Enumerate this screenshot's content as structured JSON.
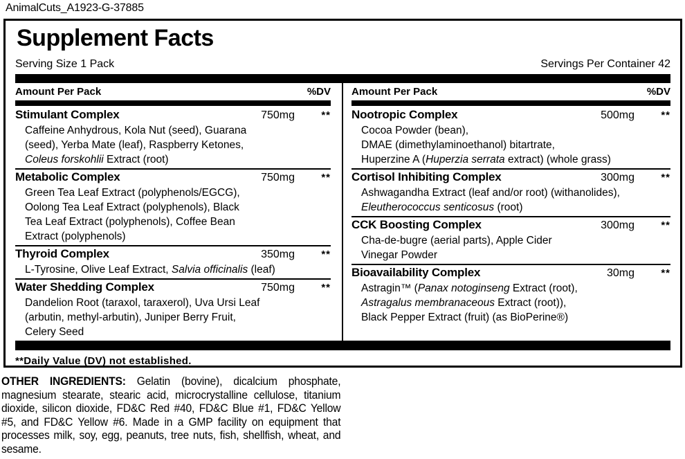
{
  "page": {
    "filename": "AnimalCuts_A1923-G-37885"
  },
  "panel": {
    "title": "Supplement Facts",
    "serving_size": "Serving Size 1 Pack",
    "servings_per_container": "Servings Per Container 42",
    "column_header": {
      "amount_label": "Amount Per Pack",
      "dv_label": "%DV"
    },
    "footnote": "**Daily Value (DV) not established.",
    "columns": [
      {
        "sections": [
          {
            "name": "Stimulant Complex",
            "amount": "750mg",
            "dv": "**",
            "lines": [
              [
                {
                  "t": "Caffeine Anhydrous, Kola Nut (seed), Guarana"
                }
              ],
              [
                {
                  "t": "(seed), Yerba Mate (leaf), Raspberry Ketones,"
                }
              ],
              [
                {
                  "t": "Coleus forskohlii",
                  "i": true
                },
                {
                  "t": " Extract (root)"
                }
              ]
            ]
          },
          {
            "name": "Metabolic Complex",
            "amount": "750mg",
            "dv": "**",
            "lines": [
              [
                {
                  "t": "Green Tea Leaf Extract (polyphenols/EGCG),"
                }
              ],
              [
                {
                  "t": "Oolong Tea Leaf Extract (polyphenols), Black"
                }
              ],
              [
                {
                  "t": "Tea Leaf Extract (polyphenols), Coffee Bean"
                }
              ],
              [
                {
                  "t": "Extract (polyphenols)"
                }
              ]
            ]
          },
          {
            "name": "Thyroid Complex",
            "amount": "350mg",
            "dv": "**",
            "lines": [
              [
                {
                  "t": "L-Tyrosine, Olive Leaf Extract, "
                },
                {
                  "t": "Salvia officinalis",
                  "i": true
                },
                {
                  "t": " (leaf)"
                }
              ]
            ]
          },
          {
            "name": "Water Shedding Complex",
            "amount": "750mg",
            "dv": "**",
            "lines": [
              [
                {
                  "t": "Dandelion Root (taraxol, taraxerol), Uva Ursi Leaf"
                }
              ],
              [
                {
                  "t": "(arbutin, methyl-arbutin), Juniper Berry Fruit,"
                }
              ],
              [
                {
                  "t": "Celery Seed"
                }
              ]
            ]
          }
        ]
      },
      {
        "sections": [
          {
            "name": "Nootropic Complex",
            "amount": "500mg",
            "dv": "**",
            "lines": [
              [
                {
                  "t": "Cocoa Powder (bean),"
                }
              ],
              [
                {
                  "t": "DMAE (dimethylaminoethanol) bitartrate,"
                }
              ],
              [
                {
                  "t": "Huperzine A ("
                },
                {
                  "t": "Huperzia serrata",
                  "i": true
                },
                {
                  "t": " extract) (whole grass)"
                }
              ]
            ]
          },
          {
            "name": "Cortisol Inhibiting Complex",
            "amount": "300mg",
            "dv": "**",
            "lines": [
              [
                {
                  "t": "Ashwagandha Extract (leaf and/or root) (withanolides),"
                }
              ],
              [
                {
                  "t": "Eleutherococcus senticosus",
                  "i": true
                },
                {
                  "t": " (root)"
                }
              ]
            ]
          },
          {
            "name": "CCK Boosting Complex",
            "amount": "300mg",
            "dv": "**",
            "lines": [
              [
                {
                  "t": "Cha-de-bugre (aerial parts), Apple Cider"
                }
              ],
              [
                {
                  "t": "Vinegar Powder"
                }
              ]
            ]
          },
          {
            "name": "Bioavailability Complex",
            "amount": "30mg",
            "dv": "**",
            "lines": [
              [
                {
                  "t": "Astragin™ ("
                },
                {
                  "t": "Panax notoginseng",
                  "i": true
                },
                {
                  "t": " Extract (root),"
                }
              ],
              [
                {
                  "t": "Astragalus membranaceous",
                  "i": true
                },
                {
                  "t": " Extract (root)),"
                }
              ],
              [
                {
                  "t": "Black Pepper Extract (fruit) (as BioPerine®)"
                }
              ]
            ]
          }
        ]
      }
    ]
  },
  "other_ingredients": {
    "label": "OTHER INGREDIENTS:",
    "text": " Gelatin (bovine), dicalcium phosphate, magnesium stearate, stearic acid, microcrystalline cellulose, titanium dioxide, silicon dioxide, FD&C Red #40, FD&C Blue #1, FD&C Yellow #5, and FD&C Yellow #6. Made in a GMP facility on equipment that processes milk, soy, egg, peanuts, tree nuts, fish, shellfish, wheat, and sesame."
  },
  "colors": {
    "ink": "#000000",
    "paper": "#ffffff"
  }
}
